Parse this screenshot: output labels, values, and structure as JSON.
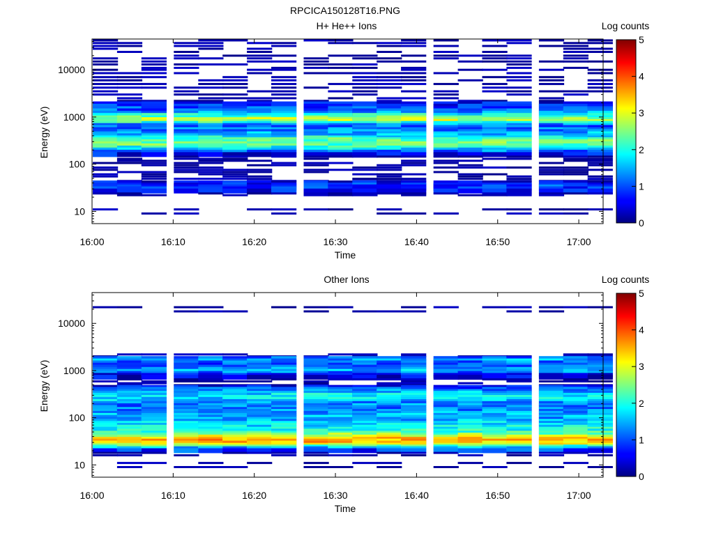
{
  "figure_title": "RPCICA150128T16.PNG",
  "chart_data": [
    {
      "type": "heatmap",
      "title": "H+ He++ Ions",
      "xlabel": "Time",
      "ylabel": "Energy (eV)",
      "x_ticks": [
        "16:00",
        "16:10",
        "16:20",
        "16:30",
        "16:40",
        "16:50",
        "17:00"
      ],
      "y_ticks": [
        "10",
        "100",
        "1000",
        "10000"
      ],
      "ylog": true,
      "ylim": [
        5.5,
        45000
      ],
      "time_range": [
        "16:00",
        "17:03"
      ],
      "colorbar_label": "Log counts",
      "colorbar_ticks": [
        "0",
        "1",
        "2",
        "3",
        "4",
        "5"
      ],
      "colorbar_range": [
        0,
        5
      ],
      "time_bins": [
        "16:00",
        "16:03",
        "16:06",
        "16:10",
        "16:13",
        "16:16",
        "16:19",
        "16:22",
        "16:26",
        "16:29",
        "16:32",
        "16:35",
        "16:38",
        "16:42",
        "16:45",
        "16:48",
        "16:51",
        "16:55",
        "16:58",
        "17:01"
      ],
      "profile": [
        [
          42000,
          0.2
        ],
        [
          37000,
          0.15
        ],
        [
          32000,
          0.2
        ],
        [
          28000,
          0.2
        ],
        [
          24000,
          0.15
        ],
        [
          20000,
          0.15
        ],
        [
          17500,
          0.15
        ],
        [
          15000,
          0.15
        ],
        [
          13000,
          0.2
        ],
        [
          11000,
          0.2
        ],
        [
          10000,
          0.25
        ],
        [
          8500,
          0.25
        ],
        [
          7000,
          0.25
        ],
        [
          6000,
          0.2
        ],
        [
          5000,
          0.2
        ],
        [
          4200,
          0.25
        ],
        [
          3500,
          0.3
        ],
        [
          3000,
          0.25
        ],
        [
          2500,
          0.3
        ],
        [
          2200,
          0.45
        ],
        [
          1900,
          0.6
        ],
        [
          1700,
          0.8
        ],
        [
          1500,
          0.95
        ],
        [
          1350,
          1.1
        ],
        [
          1200,
          1.4
        ],
        [
          1080,
          1.9
        ],
        [
          960,
          2.3
        ],
        [
          880,
          2.7
        ],
        [
          800,
          2.8
        ],
        [
          730,
          2.1
        ],
        [
          660,
          1.4
        ],
        [
          600,
          1.1
        ],
        [
          540,
          1.2
        ],
        [
          490,
          1.3
        ],
        [
          440,
          1.5
        ],
        [
          400,
          1.6
        ],
        [
          360,
          1.9
        ],
        [
          330,
          2.2
        ],
        [
          300,
          2.4
        ],
        [
          270,
          2.5
        ],
        [
          245,
          2.3
        ],
        [
          220,
          2.0
        ],
        [
          200,
          1.7
        ],
        [
          180,
          1.2
        ],
        [
          160,
          0.6
        ],
        [
          145,
          0.35
        ],
        [
          130,
          0.3
        ],
        [
          118,
          0.25
        ],
        [
          106,
          0.3
        ],
        [
          95,
          0.3
        ],
        [
          85,
          0.3
        ],
        [
          76,
          0.3
        ],
        [
          68,
          0.3
        ],
        [
          61,
          0.3
        ],
        [
          55,
          0.3
        ],
        [
          49,
          0.3
        ],
        [
          44,
          0.35
        ],
        [
          40,
          0.55
        ],
        [
          36,
          0.8
        ],
        [
          33,
          0.95
        ],
        [
          30,
          0.9
        ],
        [
          27,
          0.65
        ],
        [
          24,
          0.4
        ],
        [
          22,
          0.2
        ],
        [
          11,
          0.25
        ],
        [
          9,
          0.2
        ]
      ]
    },
    {
      "type": "heatmap",
      "title": "Other Ions",
      "xlabel": "Time",
      "ylabel": "Energy (eV)",
      "x_ticks": [
        "16:00",
        "16:10",
        "16:20",
        "16:30",
        "16:40",
        "16:50",
        "17:00"
      ],
      "y_ticks": [
        "10",
        "100",
        "1000",
        "10000"
      ],
      "ylog": true,
      "ylim": [
        5.5,
        45000
      ],
      "time_range": [
        "16:00",
        "17:03"
      ],
      "colorbar_label": "Log counts",
      "colorbar_ticks": [
        "0",
        "1",
        "2",
        "3",
        "4",
        "5"
      ],
      "colorbar_range": [
        0,
        5
      ],
      "time_bins": [
        "16:00",
        "16:03",
        "16:06",
        "16:10",
        "16:13",
        "16:16",
        "16:19",
        "16:22",
        "16:26",
        "16:29",
        "16:32",
        "16:35",
        "16:38",
        "16:42",
        "16:45",
        "16:48",
        "16:51",
        "16:55",
        "16:58",
        "17:01"
      ],
      "profile": [
        [
          22000,
          0.08
        ],
        [
          18000,
          0.08
        ],
        [
          2200,
          0.2
        ],
        [
          2000,
          0.4
        ],
        [
          1800,
          1.2
        ],
        [
          1600,
          1.4
        ],
        [
          1450,
          1.2
        ],
        [
          1300,
          1.0
        ],
        [
          1180,
          1.1
        ],
        [
          1060,
          1.3
        ],
        [
          960,
          1.5
        ],
        [
          870,
          1.2
        ],
        [
          790,
          0.7
        ],
        [
          720,
          0.5
        ],
        [
          650,
          0.3
        ],
        [
          590,
          0.3
        ],
        [
          540,
          0.3
        ],
        [
          490,
          0.4
        ],
        [
          440,
          0.6
        ],
        [
          400,
          1.0
        ],
        [
          360,
          1.3
        ],
        [
          330,
          1.5
        ],
        [
          300,
          1.7
        ],
        [
          270,
          1.8
        ],
        [
          245,
          1.7
        ],
        [
          220,
          1.6
        ],
        [
          200,
          1.4
        ],
        [
          180,
          1.3
        ],
        [
          165,
          1.2
        ],
        [
          150,
          1.2
        ],
        [
          136,
          1.3
        ],
        [
          124,
          1.4
        ],
        [
          112,
          1.5
        ],
        [
          102,
          1.5
        ],
        [
          92,
          1.4
        ],
        [
          84,
          1.5
        ],
        [
          76,
          1.6
        ],
        [
          69,
          1.7
        ],
        [
          63,
          1.8
        ],
        [
          57,
          1.9
        ],
        [
          52,
          2.0
        ],
        [
          47,
          2.2
        ],
        [
          43,
          2.5
        ],
        [
          39,
          2.9
        ],
        [
          35,
          3.3
        ],
        [
          32,
          3.5
        ],
        [
          29,
          3.4
        ],
        [
          26,
          3.0
        ],
        [
          24,
          2.2
        ],
        [
          22,
          1.5
        ],
        [
          20,
          0.9
        ],
        [
          18,
          0.4
        ],
        [
          16,
          0.2
        ],
        [
          11,
          0.2
        ],
        [
          9,
          0.15
        ]
      ]
    }
  ]
}
